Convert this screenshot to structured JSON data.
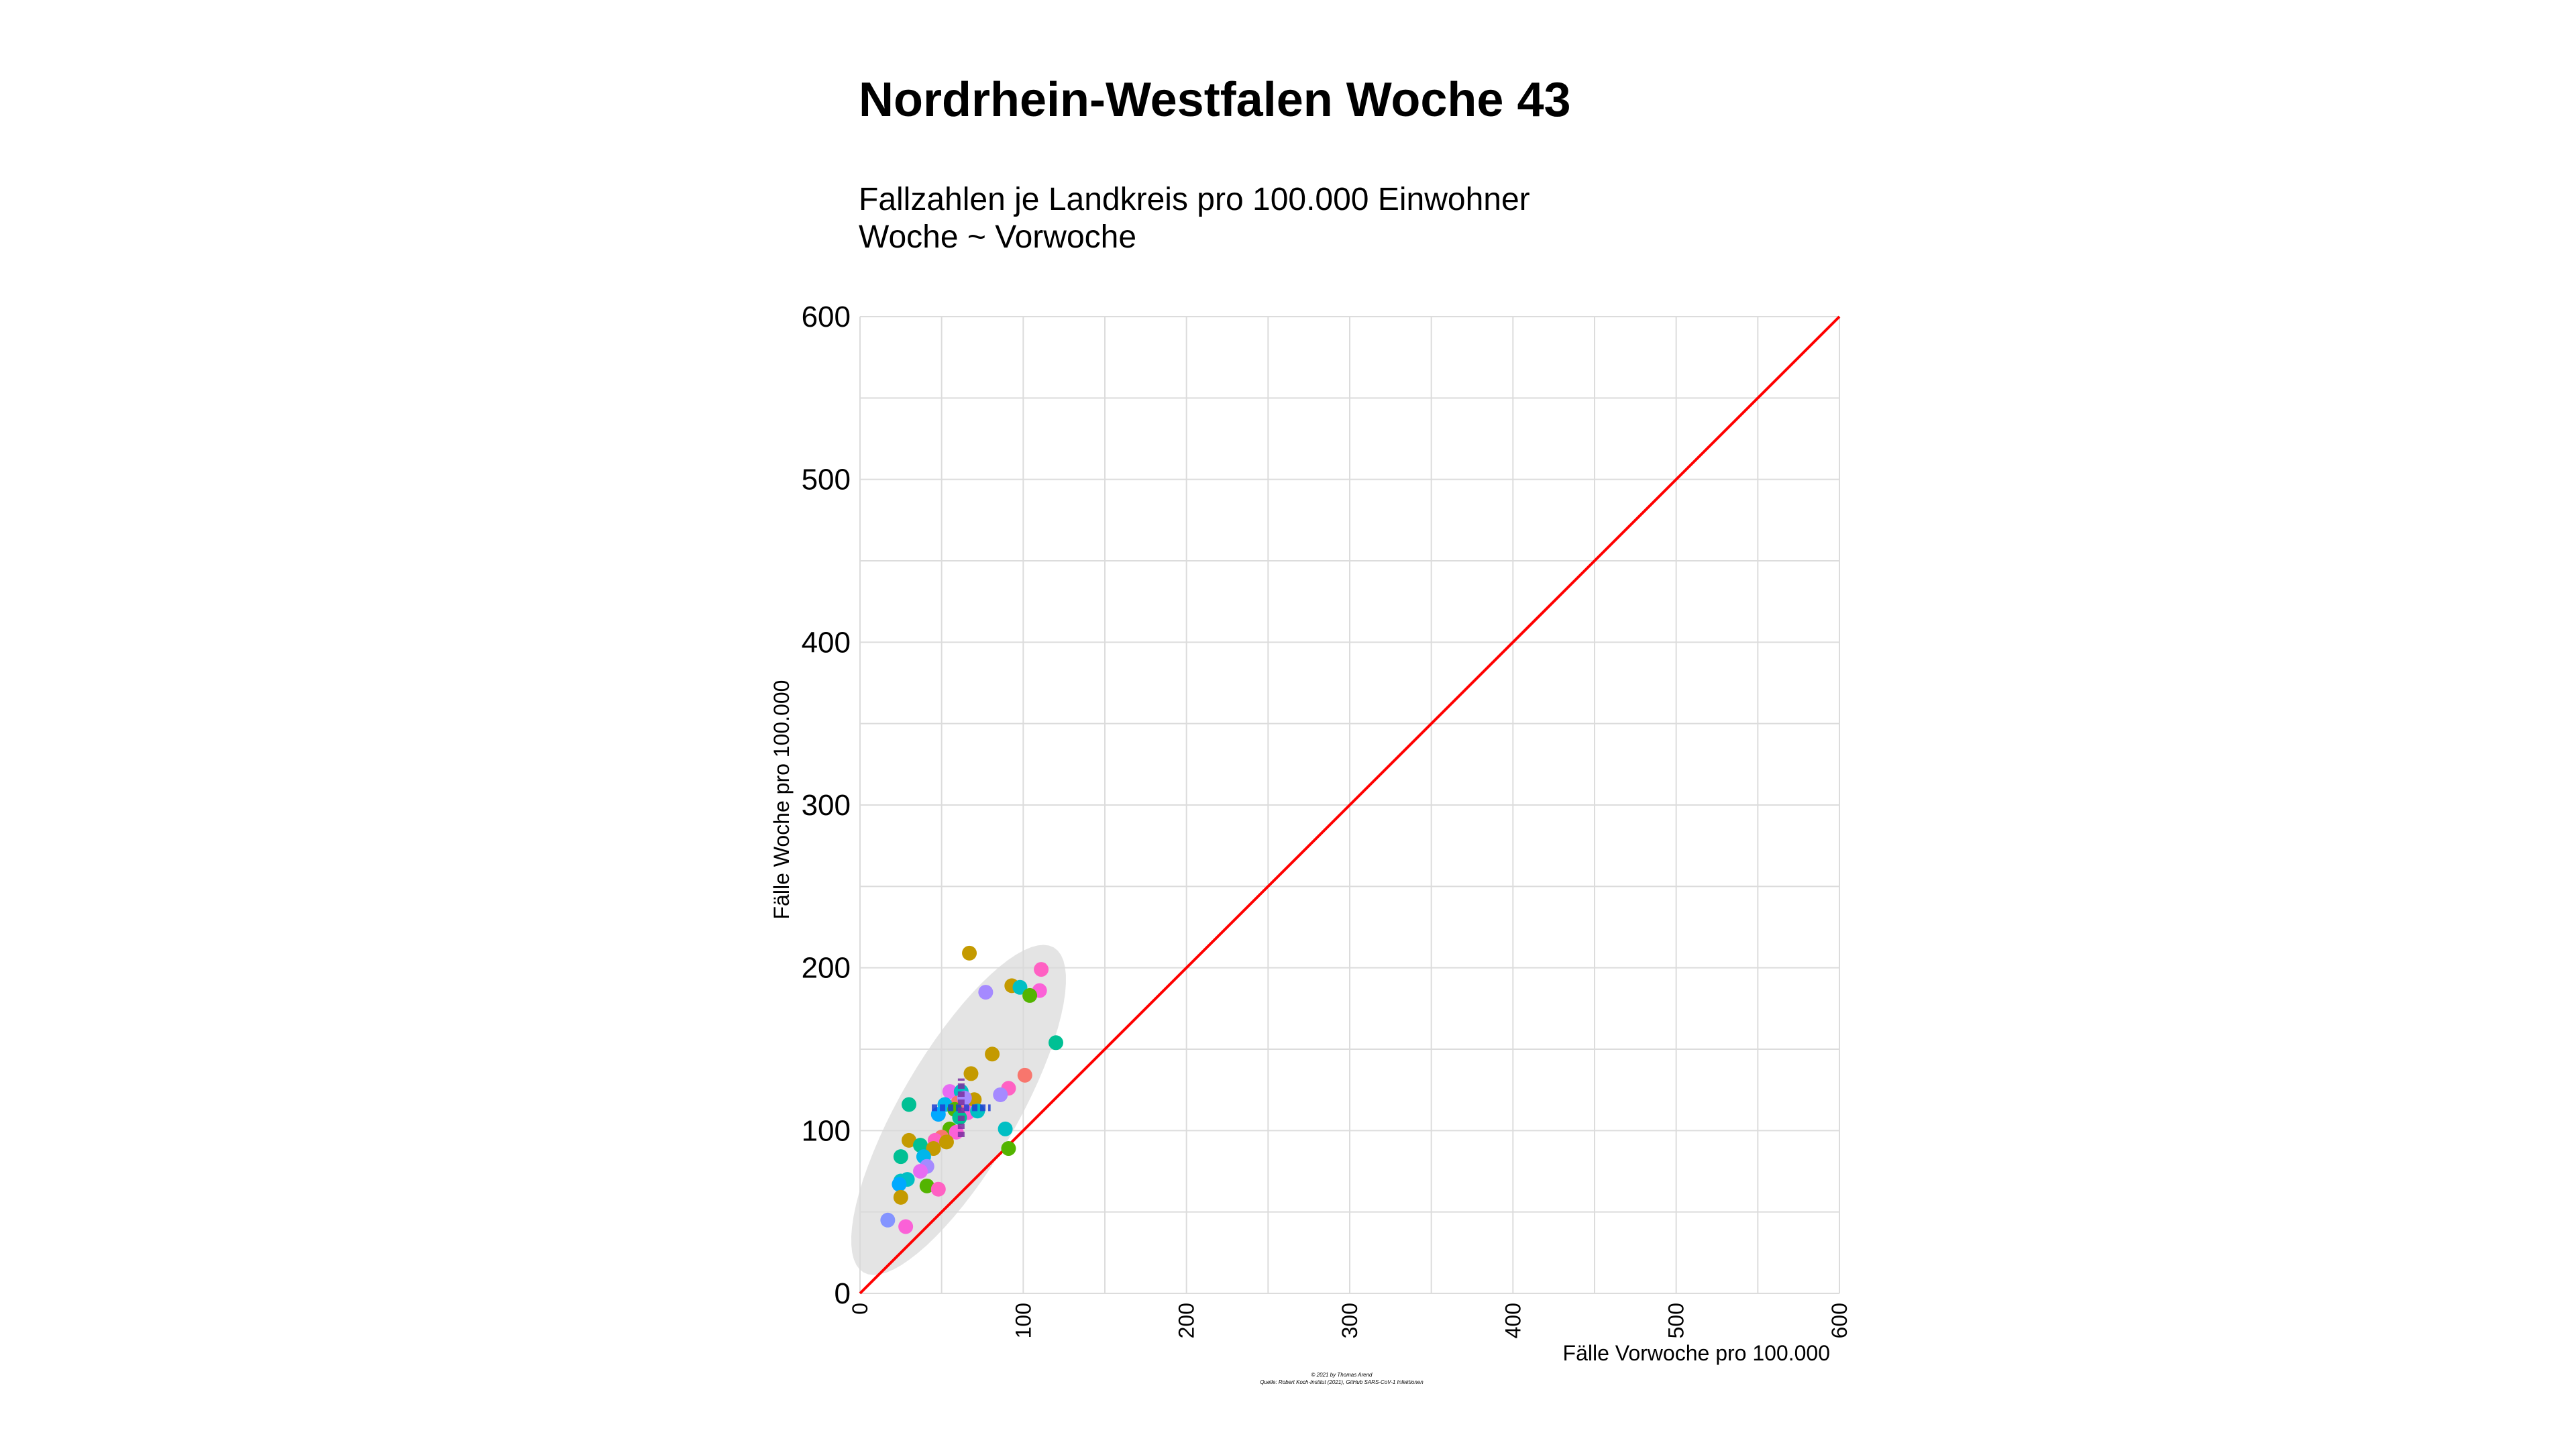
{
  "header": {
    "title": "Nordrhein-Westfalen Woche 43",
    "subtitle_line1": "Fallzahlen je Landkreis pro 100.000 Einwohner",
    "subtitle_line2": "Woche ~ Vorwoche"
  },
  "credits": {
    "line1": "© 2021 by Thomas Arend",
    "line2": "Quelle: Robert Koch-Institut (2021), GitHub SARS-CoV-1 Infektionen"
  },
  "chart_data": {
    "type": "scatter",
    "title": "Nordrhein-Westfalen Woche 43",
    "subtitle": "Fallzahlen je Landkreis pro 100.000 Einwohner Woche ~ Vorwoche",
    "xlabel": "Fälle Vorwoche pro 100.000",
    "ylabel": "Fälle Woche pro 100.000",
    "xlim": [
      0,
      600
    ],
    "ylim": [
      0,
      600
    ],
    "x_ticks": [
      0,
      100,
      200,
      300,
      400,
      500,
      600
    ],
    "y_ticks": [
      0,
      100,
      200,
      300,
      400,
      500,
      600
    ],
    "grid": true,
    "legend": "none",
    "reference_line": {
      "type": "y=x",
      "color": "#ff0000"
    },
    "mean_cross": {
      "x": 62,
      "y": 114,
      "color": "#1f3fd1"
    },
    "ellipse_color": "#d9d9d9",
    "points": [
      {
        "x": 67,
        "y": 209,
        "color": "#c49a00"
      },
      {
        "x": 111,
        "y": 199,
        "color": "#ff61c3"
      },
      {
        "x": 77,
        "y": 185,
        "color": "#a58aff"
      },
      {
        "x": 93,
        "y": 189,
        "color": "#c49a00"
      },
      {
        "x": 98,
        "y": 188,
        "color": "#00bfc4"
      },
      {
        "x": 110,
        "y": 186,
        "color": "#fb61d7"
      },
      {
        "x": 104,
        "y": 183,
        "color": "#53b400"
      },
      {
        "x": 120,
        "y": 154,
        "color": "#00c094"
      },
      {
        "x": 81,
        "y": 147,
        "color": "#c49a00"
      },
      {
        "x": 101,
        "y": 134,
        "color": "#f8766d"
      },
      {
        "x": 68,
        "y": 135,
        "color": "#c49a00"
      },
      {
        "x": 91,
        "y": 126,
        "color": "#ff61c3"
      },
      {
        "x": 86,
        "y": 122,
        "color": "#a58aff"
      },
      {
        "x": 55,
        "y": 124,
        "color": "#e76bf3"
      },
      {
        "x": 62,
        "y": 124,
        "color": "#00bfc4"
      },
      {
        "x": 70,
        "y": 119,
        "color": "#c49a00"
      },
      {
        "x": 60,
        "y": 117,
        "color": "#f8766d"
      },
      {
        "x": 64,
        "y": 120,
        "color": "#a58aff"
      },
      {
        "x": 52,
        "y": 116,
        "color": "#00b6eb"
      },
      {
        "x": 58,
        "y": 113,
        "color": "#53b400"
      },
      {
        "x": 66,
        "y": 111,
        "color": "#fb61d7"
      },
      {
        "x": 72,
        "y": 112,
        "color": "#00bfc4"
      },
      {
        "x": 48,
        "y": 110,
        "color": "#00a9ff"
      },
      {
        "x": 61,
        "y": 108,
        "color": "#00c094"
      },
      {
        "x": 30,
        "y": 116,
        "color": "#00c094"
      },
      {
        "x": 89,
        "y": 101,
        "color": "#00bfc4"
      },
      {
        "x": 55,
        "y": 101,
        "color": "#53b400"
      },
      {
        "x": 59,
        "y": 99,
        "color": "#fb61d7"
      },
      {
        "x": 50,
        "y": 96,
        "color": "#f8766d"
      },
      {
        "x": 46,
        "y": 94,
        "color": "#ff61c3"
      },
      {
        "x": 53,
        "y": 93,
        "color": "#c49a00"
      },
      {
        "x": 30,
        "y": 94,
        "color": "#c49a00"
      },
      {
        "x": 37,
        "y": 91,
        "color": "#00c094"
      },
      {
        "x": 45,
        "y": 89,
        "color": "#c49a00"
      },
      {
        "x": 91,
        "y": 89,
        "color": "#53b400"
      },
      {
        "x": 25,
        "y": 84,
        "color": "#00c094"
      },
      {
        "x": 39,
        "y": 84,
        "color": "#00b6eb"
      },
      {
        "x": 41,
        "y": 78,
        "color": "#a58aff"
      },
      {
        "x": 37,
        "y": 75,
        "color": "#e76bf3"
      },
      {
        "x": 29,
        "y": 70,
        "color": "#00bfc4"
      },
      {
        "x": 25,
        "y": 69,
        "color": "#00bfc4"
      },
      {
        "x": 24,
        "y": 67,
        "color": "#00a9ff"
      },
      {
        "x": 41,
        "y": 66,
        "color": "#53b400"
      },
      {
        "x": 48,
        "y": 64,
        "color": "#ff61c3"
      },
      {
        "x": 25,
        "y": 59,
        "color": "#c49a00"
      },
      {
        "x": 17,
        "y": 45,
        "color": "#8494ff"
      },
      {
        "x": 28,
        "y": 41,
        "color": "#fb61d7"
      }
    ]
  }
}
